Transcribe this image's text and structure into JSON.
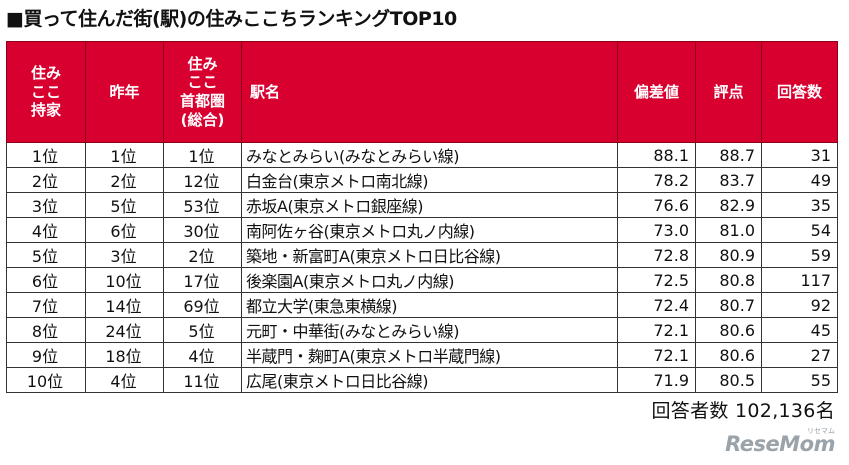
{
  "title": "■買って住んだ街(駅)の住みここちランキングTOP10",
  "table": {
    "headers": [
      "住み\nここ\n持家",
      "昨年",
      "住み\nここ\n首都圏\n(総合)",
      "駅名",
      "偏差値",
      "評点",
      "回答数"
    ],
    "rows": [
      [
        "1位",
        "1位",
        "1位",
        "みなとみらい(みなとみらい線)",
        "88.1",
        "88.7",
        "31"
      ],
      [
        "2位",
        "2位",
        "12位",
        "白金台(東京メトロ南北線)",
        "78.2",
        "83.7",
        "49"
      ],
      [
        "3位",
        "5位",
        "53位",
        "赤坂A(東京メトロ銀座線)",
        "76.6",
        "82.9",
        "35"
      ],
      [
        "4位",
        "6位",
        "30位",
        "南阿佐ヶ谷(東京メトロ丸ノ内線)",
        "73.0",
        "81.0",
        "54"
      ],
      [
        "5位",
        "3位",
        "2位",
        "築地・新富町A(東京メトロ日比谷線)",
        "72.8",
        "80.9",
        "59"
      ],
      [
        "6位",
        "10位",
        "17位",
        "後楽園A(東京メトロ丸ノ内線)",
        "72.5",
        "80.8",
        "117"
      ],
      [
        "7位",
        "14位",
        "69位",
        "都立大学(東急東横線)",
        "72.4",
        "80.7",
        "92"
      ],
      [
        "8位",
        "24位",
        "5位",
        "元町・中華街(みなとみらい線)",
        "72.1",
        "80.6",
        "45"
      ],
      [
        "9位",
        "18位",
        "4位",
        "半蔵門・麹町A(東京メトロ半蔵門線)",
        "72.1",
        "80.6",
        "27"
      ],
      [
        "10位",
        "4位",
        "11位",
        "広尾(東京メトロ日比谷線)",
        "71.9",
        "80.5",
        "55"
      ]
    ]
  },
  "total": "回答者数 102,136名",
  "logo": "ReseMom",
  "logo_kana": "リセマム",
  "colors": {
    "header_bg": "#d7002f",
    "header_text": "#ffffff",
    "logo": "#9aa2aa"
  }
}
